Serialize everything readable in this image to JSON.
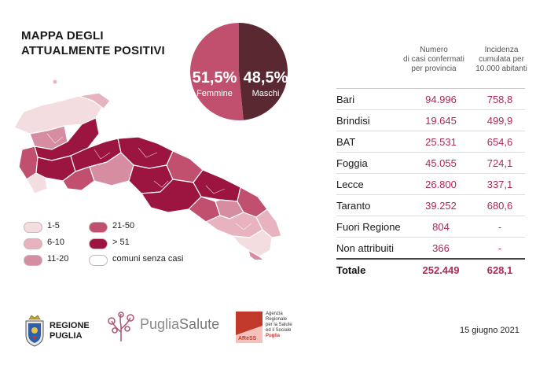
{
  "title": {
    "line1": "MAPPA DEGLI",
    "line2": "ATTUALMENTE POSITIVI"
  },
  "pie": {
    "femmine_pct": "51,5%",
    "femmine_label": "Femmine",
    "femmine_value": 51.5,
    "maschi_pct": "48,5%",
    "maschi_label": "Maschi",
    "maschi_value": 48.5,
    "femmine_color": "#c0506e",
    "maschi_color": "#5a2831"
  },
  "table": {
    "header_col1": [
      "Numero",
      "di casi confermati",
      "per provincia"
    ],
    "header_col2": [
      "Incidenza",
      "cumulata per",
      "10.000 abitanti"
    ],
    "rows": [
      {
        "name": "Bari",
        "cases": "94.996",
        "incidence": "758,8"
      },
      {
        "name": "Brindisi",
        "cases": "19.645",
        "incidence": "499,9"
      },
      {
        "name": "BAT",
        "cases": "25.531",
        "incidence": "654,6"
      },
      {
        "name": "Foggia",
        "cases": "45.055",
        "incidence": "724,1"
      },
      {
        "name": "Lecce",
        "cases": "26.800",
        "incidence": "337,1"
      },
      {
        "name": "Taranto",
        "cases": "39.252",
        "incidence": "680,6"
      },
      {
        "name": "Fuori Regione",
        "cases": "804",
        "incidence": "-"
      },
      {
        "name": "Non attribuiti",
        "cases": "366",
        "incidence": "-"
      }
    ],
    "total": {
      "name": "Totale",
      "cases": "252.449",
      "incidence": "628,1"
    }
  },
  "legend": [
    {
      "label": "1-5",
      "color": "#f3dde1"
    },
    {
      "label": "6-10",
      "color": "#e6b3bf"
    },
    {
      "label": "11-20",
      "color": "#d68da1"
    },
    {
      "label": "21-50",
      "color": "#c0506e"
    },
    {
      "label": "> 51",
      "color": "#9c1440"
    },
    {
      "label": "comuni senza casi",
      "color": "#ffffff"
    }
  ],
  "logos": {
    "regione_line1": "REGIONE",
    "regione_line2": "PUGLIA",
    "puglia": "Puglia",
    "salute": "Salute",
    "ares_lines": [
      "Agenzia",
      "Regionale",
      "per la Salute",
      "ed il Sociale",
      "Puglia"
    ],
    "ares_mark": "AReSS"
  },
  "date": "15 giugno 2021"
}
